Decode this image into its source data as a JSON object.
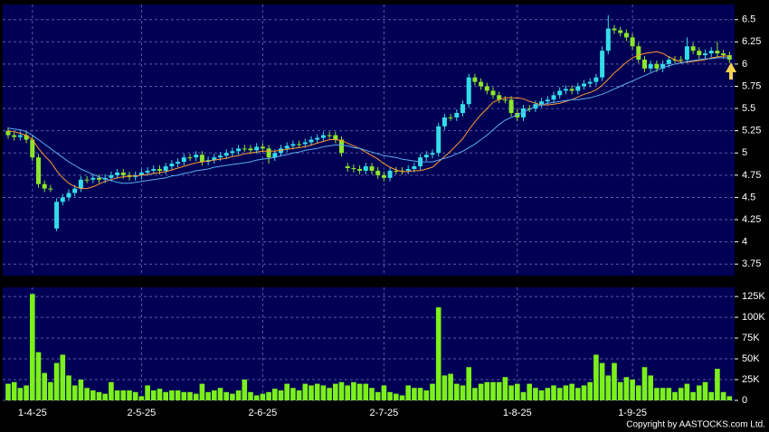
{
  "chart_data": [
    {
      "type": "candlestick",
      "open": [
        5.25,
        5.2,
        5.18,
        5.2,
        5.15,
        4.95,
        4.65,
        4.6,
        4.15,
        4.45,
        4.5,
        4.55,
        4.6,
        4.7,
        4.7,
        4.72,
        4.7,
        4.72,
        4.75,
        4.78,
        4.75,
        4.73,
        4.75,
        4.78,
        4.8,
        4.82,
        4.8,
        4.85,
        4.88,
        4.9,
        4.95,
        4.95,
        4.98,
        4.9,
        4.92,
        4.95,
        4.97,
        5.0,
        5.02,
        5.05,
        5.05,
        5.03,
        5.07,
        5.05,
        4.95,
        5.0,
        5.05,
        5.08,
        5.1,
        5.1,
        5.12,
        5.15,
        5.17,
        5.2,
        5.2,
        5.15,
        4.85,
        4.83,
        4.82,
        4.8,
        4.85,
        4.8,
        4.75,
        4.72,
        4.8,
        4.8,
        4.8,
        4.82,
        4.85,
        4.95,
        4.98,
        5.0,
        5.3,
        5.4,
        5.4,
        5.45,
        5.55,
        5.85,
        5.8,
        5.75,
        5.7,
        5.65,
        5.6,
        5.6,
        5.45,
        5.4,
        5.5,
        5.5,
        5.55,
        5.58,
        5.6,
        5.65,
        5.7,
        5.72,
        5.7,
        5.75,
        5.78,
        5.8,
        5.85,
        6.15,
        6.4,
        6.38,
        6.35,
        6.3,
        6.2,
        6.05,
        5.95,
        6.0,
        5.95,
        6.0,
        6.05,
        6.05,
        6.05,
        6.2,
        6.15,
        6.1,
        6.12,
        6.15,
        6.12,
        6.1
      ],
      "high": [
        5.29,
        5.24,
        5.24,
        5.24,
        5.19,
        4.99,
        4.69,
        4.64,
        4.49,
        4.54,
        4.59,
        4.64,
        4.74,
        4.74,
        4.76,
        4.76,
        4.76,
        4.79,
        4.82,
        4.82,
        4.79,
        4.79,
        4.82,
        4.84,
        4.86,
        4.86,
        4.89,
        4.92,
        4.94,
        4.99,
        4.99,
        5.02,
        5.02,
        4.96,
        4.99,
        5.01,
        5.04,
        5.06,
        5.09,
        5.09,
        5.09,
        5.11,
        5.11,
        5.09,
        5.04,
        5.09,
        5.12,
        5.14,
        5.14,
        5.16,
        5.19,
        5.21,
        5.24,
        5.24,
        5.24,
        5.19,
        4.89,
        4.87,
        4.86,
        4.89,
        4.89,
        4.84,
        4.79,
        4.84,
        4.84,
        4.84,
        4.86,
        4.89,
        4.99,
        5.02,
        5.04,
        5.34,
        5.44,
        5.44,
        5.49,
        5.59,
        5.89,
        5.89,
        5.84,
        5.79,
        5.74,
        5.69,
        5.64,
        5.64,
        5.49,
        5.54,
        5.54,
        5.59,
        5.62,
        5.64,
        5.69,
        5.74,
        5.76,
        5.76,
        5.79,
        5.82,
        5.84,
        5.89,
        6.2,
        6.55,
        6.44,
        6.42,
        6.39,
        6.34,
        6.24,
        6.09,
        6.04,
        6.04,
        6.04,
        6.09,
        6.09,
        6.09,
        6.3,
        6.24,
        6.19,
        6.16,
        6.19,
        6.25,
        6.16,
        6.14
      ],
      "low": [
        5.16,
        5.14,
        5.14,
        5.11,
        4.91,
        4.61,
        4.56,
        4.56,
        4.12,
        4.41,
        4.46,
        4.51,
        4.56,
        4.66,
        4.66,
        4.66,
        4.66,
        4.68,
        4.71,
        4.71,
        4.69,
        4.69,
        4.71,
        4.74,
        4.76,
        4.76,
        4.76,
        4.81,
        4.84,
        4.86,
        4.91,
        4.91,
        4.86,
        4.86,
        4.88,
        4.91,
        4.93,
        4.96,
        4.98,
        5.01,
        4.99,
        4.99,
        5.01,
        4.88,
        4.91,
        4.96,
        5.01,
        5.04,
        5.06,
        5.06,
        5.08,
        5.11,
        5.13,
        5.16,
        5.11,
        4.96,
        4.79,
        4.78,
        4.76,
        4.76,
        4.76,
        4.71,
        4.68,
        4.68,
        4.76,
        4.76,
        4.76,
        4.78,
        4.81,
        4.91,
        4.94,
        4.96,
        5.26,
        5.36,
        5.36,
        5.41,
        5.51,
        5.76,
        5.71,
        5.66,
        5.61,
        5.56,
        5.56,
        5.41,
        5.36,
        5.36,
        5.46,
        5.46,
        5.51,
        5.54,
        5.56,
        5.61,
        5.66,
        5.66,
        5.66,
        5.71,
        5.74,
        5.76,
        5.81,
        6.11,
        6.34,
        6.31,
        6.26,
        6.16,
        6.01,
        5.91,
        5.91,
        5.91,
        5.91,
        5.96,
        6.01,
        6.01,
        6.01,
        6.11,
        6.06,
        6.06,
        6.08,
        6.08,
        6.06,
        6.01
      ],
      "close": [
        5.2,
        5.18,
        5.2,
        5.15,
        4.95,
        4.65,
        4.6,
        4.6,
        4.45,
        4.5,
        4.55,
        4.6,
        4.7,
        4.7,
        4.72,
        4.7,
        4.72,
        4.75,
        4.78,
        4.75,
        4.73,
        4.75,
        4.78,
        4.8,
        4.82,
        4.8,
        4.85,
        4.88,
        4.9,
        4.95,
        4.95,
        4.98,
        4.9,
        4.92,
        4.95,
        4.97,
        5.0,
        5.02,
        5.05,
        5.05,
        5.03,
        5.07,
        5.05,
        4.95,
        5.0,
        5.05,
        5.08,
        5.1,
        5.1,
        5.12,
        5.15,
        5.17,
        5.2,
        5.2,
        5.15,
        5.0,
        4.83,
        4.82,
        4.8,
        4.85,
        4.8,
        4.75,
        4.72,
        4.8,
        4.8,
        4.8,
        4.82,
        4.85,
        4.95,
        4.98,
        5.0,
        5.3,
        5.4,
        5.4,
        5.45,
        5.55,
        5.85,
        5.8,
        5.75,
        5.7,
        5.65,
        5.6,
        5.6,
        5.45,
        5.4,
        5.5,
        5.5,
        5.55,
        5.58,
        5.6,
        5.65,
        5.7,
        5.72,
        5.7,
        5.75,
        5.78,
        5.8,
        5.85,
        6.15,
        6.4,
        6.38,
        6.35,
        6.3,
        6.2,
        6.05,
        5.95,
        6.0,
        5.95,
        6.0,
        6.05,
        6.05,
        6.05,
        6.2,
        6.15,
        6.1,
        6.12,
        6.15,
        6.12,
        6.1,
        6.05
      ],
      "up_color": "#33dde8",
      "down_color": "#8ce62a",
      "series": [
        {
          "color": "#ff9933",
          "values": [
            5.25,
            5.24,
            5.22,
            5.2,
            5.15,
            5.05,
            4.97,
            4.9,
            4.8,
            4.72,
            4.66,
            4.62,
            4.6,
            4.6,
            4.62,
            4.65,
            4.68,
            4.7,
            4.72,
            4.73,
            4.74,
            4.74,
            4.75,
            4.76,
            4.77,
            4.78,
            4.79,
            4.81,
            4.83,
            4.85,
            4.87,
            4.89,
            4.9,
            4.91,
            4.92,
            4.93,
            4.94,
            4.96,
            4.97,
            4.99,
            5.0,
            5.01,
            5.02,
            5.02,
            5.02,
            5.03,
            5.04,
            5.05,
            5.06,
            5.07,
            5.09,
            5.11,
            5.13,
            5.15,
            5.15,
            5.14,
            5.11,
            5.08,
            5.05,
            5.01,
            4.97,
            4.93,
            4.88,
            4.84,
            4.81,
            4.79,
            4.79,
            4.8,
            4.8,
            4.82,
            4.84,
            4.9,
            4.96,
            5.02,
            5.09,
            5.16,
            5.26,
            5.35,
            5.43,
            5.5,
            5.57,
            5.6,
            5.62,
            5.62,
            5.62,
            5.61,
            5.58,
            5.56,
            5.54,
            5.54,
            5.55,
            5.56,
            5.58,
            5.6,
            5.63,
            5.66,
            5.68,
            5.71,
            5.76,
            5.83,
            5.9,
            5.96,
            6.02,
            6.07,
            6.1,
            6.12,
            6.13,
            6.14,
            6.12,
            6.08,
            6.05,
            6.02,
            6.02,
            6.03,
            6.04,
            6.05,
            6.07,
            6.08,
            6.09,
            6.09
          ]
        },
        {
          "color": "#5aaef0",
          "values": [
            5.28,
            5.27,
            5.26,
            5.24,
            5.2,
            5.15,
            5.1,
            5.05,
            5.0,
            4.95,
            4.9,
            4.86,
            4.82,
            4.79,
            4.76,
            4.73,
            4.71,
            4.69,
            4.67,
            4.66,
            4.66,
            4.67,
            4.68,
            4.69,
            4.7,
            4.71,
            4.72,
            4.74,
            4.75,
            4.77,
            4.78,
            4.8,
            4.81,
            4.82,
            4.84,
            4.85,
            4.86,
            4.87,
            4.88,
            4.89,
            4.9,
            4.92,
            4.93,
            4.94,
            4.95,
            4.97,
            4.98,
            5.0,
            5.01,
            5.03,
            5.04,
            5.05,
            5.07,
            5.08,
            5.09,
            5.09,
            5.08,
            5.06,
            5.05,
            5.03,
            5.01,
            4.99,
            4.97,
            4.96,
            4.95,
            4.93,
            4.92,
            4.91,
            4.9,
            4.9,
            4.9,
            4.92,
            4.94,
            4.96,
            4.99,
            5.02,
            5.06,
            5.1,
            5.15,
            5.2,
            5.26,
            5.32,
            5.37,
            5.4,
            5.43,
            5.46,
            5.49,
            5.52,
            5.54,
            5.56,
            5.57,
            5.58,
            5.59,
            5.6,
            5.6,
            5.61,
            5.62,
            5.64,
            5.66,
            5.69,
            5.72,
            5.75,
            5.78,
            5.81,
            5.84,
            5.87,
            5.9,
            5.93,
            5.96,
            5.98,
            6.0,
            6.01,
            6.03,
            6.04,
            6.05,
            6.06,
            6.06,
            6.07,
            6.07,
            6.07
          ]
        }
      ],
      "ylim": [
        3.62,
        6.67
      ],
      "yticks": [
        3.75,
        4,
        4.25,
        4.5,
        4.75,
        5,
        5.25,
        5.5,
        5.75,
        6,
        6.25,
        6.5
      ],
      "grid": true
    },
    {
      "type": "bar",
      "categories": [
        null,
        null,
        null,
        null,
        "1-4-25",
        null,
        null,
        null,
        null,
        null,
        null,
        null,
        null,
        null,
        null,
        null,
        null,
        null,
        null,
        null,
        null,
        null,
        "2-5-25",
        null,
        null,
        null,
        null,
        null,
        null,
        null,
        null,
        null,
        null,
        null,
        null,
        null,
        null,
        null,
        null,
        null,
        null,
        null,
        "2-6-25",
        null,
        null,
        null,
        null,
        null,
        null,
        null,
        null,
        null,
        null,
        null,
        null,
        null,
        null,
        null,
        null,
        null,
        null,
        null,
        "2-7-25",
        null,
        null,
        null,
        null,
        null,
        null,
        null,
        null,
        null,
        null,
        null,
        null,
        null,
        null,
        null,
        null,
        null,
        null,
        null,
        null,
        null,
        "1-8-25",
        null,
        null,
        null,
        null,
        null,
        null,
        null,
        null,
        null,
        null,
        null,
        null,
        null,
        null,
        null,
        null,
        null,
        null,
        "1-9-25",
        null,
        null,
        null,
        null,
        null,
        null,
        null,
        null,
        null,
        null,
        null,
        null,
        null,
        null,
        null,
        null
      ],
      "values": [
        20000,
        22000,
        15000,
        18000,
        128000,
        58000,
        33000,
        22000,
        45000,
        55000,
        30000,
        18000,
        25000,
        15000,
        12000,
        10000,
        8000,
        22000,
        12000,
        12000,
        12000,
        10000,
        5000,
        18000,
        12000,
        14000,
        10000,
        12000,
        12000,
        10000,
        10000,
        8000,
        20000,
        10000,
        12000,
        15000,
        10000,
        8000,
        12000,
        25000,
        10000,
        6000,
        8000,
        10000,
        14000,
        12000,
        20000,
        15000,
        12000,
        20000,
        18000,
        20000,
        18000,
        15000,
        20000,
        22000,
        18000,
        22000,
        20000,
        20000,
        15000,
        10000,
        18000,
        10000,
        8000,
        6000,
        18000,
        15000,
        15000,
        12000,
        20000,
        112000,
        30000,
        32000,
        20000,
        18000,
        40000,
        15000,
        20000,
        22000,
        22000,
        22000,
        28000,
        18000,
        20000,
        10000,
        20000,
        15000,
        12000,
        15000,
        18000,
        15000,
        18000,
        20000,
        15000,
        18000,
        22000,
        55000,
        45000,
        30000,
        45000,
        22000,
        28000,
        25000,
        18000,
        40000,
        30000,
        15000,
        15000,
        15000,
        10000,
        15000,
        20000,
        10000,
        18000,
        22000,
        10000,
        38000,
        10000,
        5000
      ],
      "color": "#7cf01a",
      "ylim": [
        0,
        136000
      ],
      "yticks": [
        0,
        {
          "value": 25000,
          "label": "25K"
        },
        {
          "value": 50000,
          "label": "50K"
        },
        {
          "value": 75000,
          "label": "75K"
        },
        {
          "value": 100000,
          "label": "100K"
        },
        {
          "value": 125000,
          "label": "125K"
        }
      ],
      "grid": true
    }
  ],
  "footer": "Copyright by AASTOCKS.com Ltd."
}
